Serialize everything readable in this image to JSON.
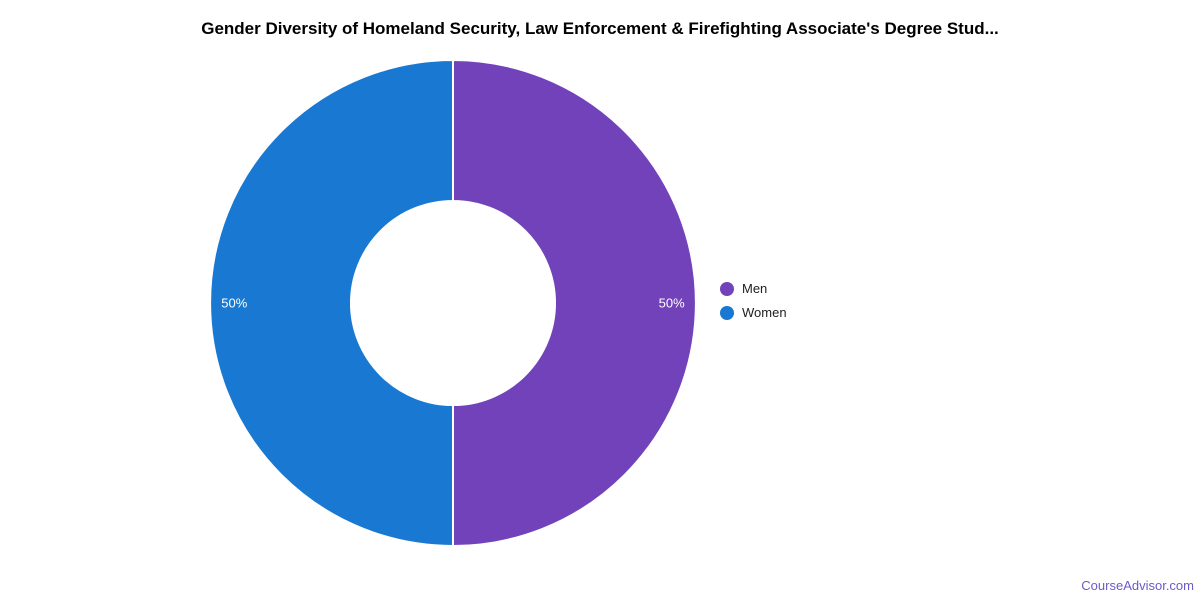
{
  "page": {
    "background": "#ffffff",
    "footer_link": "CourseAdvisor.com",
    "footer_link_color": "#6B5BC7"
  },
  "chart_data": {
    "type": "pie",
    "title": "Gender Diversity of Homeland Security, Law Enforcement & Firefighting Associate's Degree Stud...",
    "labels": [
      "Men",
      "Women"
    ],
    "values": [
      50,
      50
    ],
    "value_labels": [
      "50%",
      "50%"
    ],
    "colors": [
      "#7142B9",
      "#1878D2"
    ],
    "donut_hole_ratio": 0.42,
    "slice_border_color": "#ffffff",
    "legend_position": "right",
    "start_angle_deg": 0,
    "direction": "clockwise",
    "title_color": "#000000",
    "label_color": "#ffffff"
  }
}
